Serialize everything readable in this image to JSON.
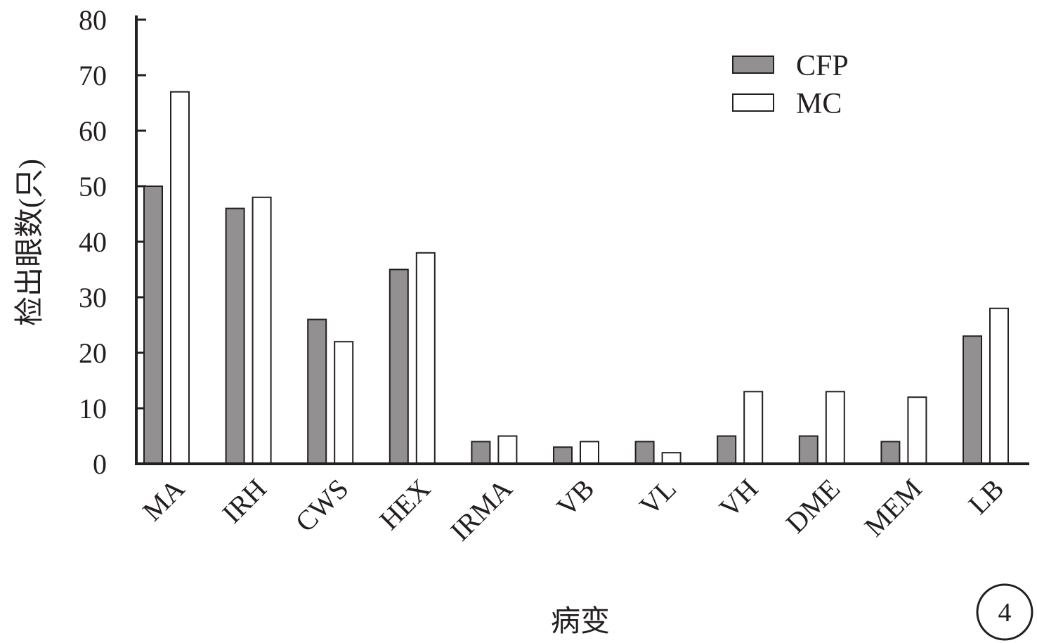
{
  "chart_data": {
    "type": "bar",
    "categories": [
      "MA",
      "IRH",
      "CWS",
      "HEX",
      "IRMA",
      "VB",
      "VL",
      "VH",
      "DME",
      "MEM",
      "LB"
    ],
    "series": [
      {
        "name": "CFP",
        "color": "#929091",
        "values": [
          50,
          46,
          26,
          35,
          4,
          3,
          4,
          5,
          5,
          4,
          23
        ]
      },
      {
        "name": "MC",
        "color": "#ffffff",
        "values": [
          67,
          48,
          22,
          38,
          5,
          4,
          2,
          13,
          13,
          12,
          28
        ]
      }
    ],
    "xlabel": "病变",
    "ylabel": "检出眼数(只)",
    "ylim": [
      0,
      80
    ],
    "yticks": [
      "0",
      "10",
      "20",
      "30",
      "40",
      "50",
      "60",
      "70",
      "80"
    ],
    "grid": false,
    "legend_position": "top-right",
    "panel_label": "4"
  }
}
